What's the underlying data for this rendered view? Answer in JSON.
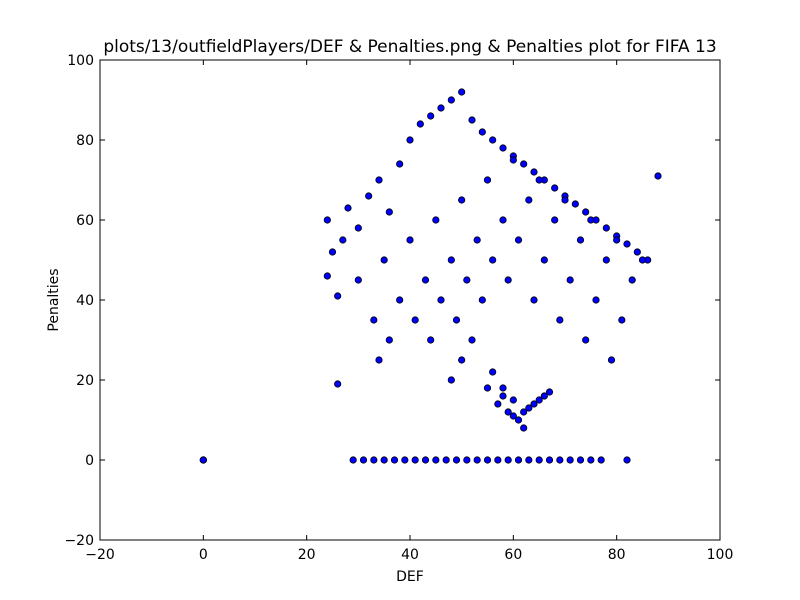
{
  "chart_data": {
    "type": "scatter",
    "title": "plots/13/outfieldPlayers/DEF & Penalties.png & Penalties plot for FIFA 13",
    "xlabel": "DEF",
    "ylabel": "Penalties",
    "xlim": [
      -20,
      100
    ],
    "ylim": [
      -20,
      100
    ],
    "xticks": [
      "−20",
      "0",
      "20",
      "40",
      "60",
      "80",
      "100"
    ],
    "yticks": [
      "−20",
      "0",
      "20",
      "40",
      "60",
      "80",
      "100"
    ],
    "grid": false,
    "legend": "none",
    "marker_color": "#0000ff",
    "marker_edge": "#000000",
    "series": [
      {
        "x": [
          0,
          0,
          0,
          29,
          31,
          33,
          35,
          37,
          39,
          41,
          43,
          45,
          47,
          49,
          51,
          53,
          55,
          57,
          59,
          61,
          63,
          65,
          67,
          69,
          71,
          73,
          75,
          77,
          82,
          24,
          24,
          25,
          26,
          26,
          27,
          28,
          30,
          32,
          34,
          36,
          38,
          40,
          42,
          44,
          46,
          48,
          50,
          52,
          54,
          56,
          58,
          60,
          62,
          64,
          66,
          68,
          70,
          72,
          74,
          76,
          78,
          80,
          82,
          84,
          86,
          88,
          30,
          35,
          40,
          45,
          50,
          55,
          60,
          65,
          70,
          75,
          80,
          85,
          33,
          38,
          43,
          48,
          53,
          58,
          63,
          68,
          73,
          78,
          83,
          36,
          41,
          46,
          51,
          56,
          61,
          66,
          71,
          76,
          81,
          34,
          44,
          49,
          54,
          59,
          64,
          69,
          74,
          79,
          48,
          50,
          52,
          56,
          58,
          60,
          62,
          64,
          66,
          55,
          57,
          59,
          61,
          63,
          65,
          67,
          62,
          60,
          58
        ],
        "y": [
          0,
          0,
          0,
          0,
          0,
          0,
          0,
          0,
          0,
          0,
          0,
          0,
          0,
          0,
          0,
          0,
          0,
          0,
          0,
          0,
          0,
          0,
          0,
          0,
          0,
          0,
          0,
          0,
          0,
          60,
          46,
          52,
          41,
          19,
          55,
          63,
          58,
          66,
          70,
          62,
          74,
          80,
          84,
          86,
          88,
          90,
          92,
          85,
          82,
          80,
          78,
          76,
          74,
          72,
          70,
          68,
          66,
          64,
          62,
          60,
          58,
          56,
          54,
          52,
          50,
          71,
          45,
          50,
          55,
          60,
          65,
          70,
          75,
          70,
          65,
          60,
          55,
          50,
          35,
          40,
          45,
          50,
          55,
          60,
          65,
          60,
          55,
          50,
          45,
          30,
          35,
          40,
          45,
          50,
          55,
          50,
          45,
          40,
          35,
          25,
          30,
          35,
          40,
          45,
          40,
          35,
          30,
          25,
          20,
          25,
          30,
          22,
          18,
          15,
          12,
          14,
          16,
          18,
          14,
          12,
          10,
          13,
          15,
          17,
          8,
          11,
          16
        ]
      }
    ]
  }
}
